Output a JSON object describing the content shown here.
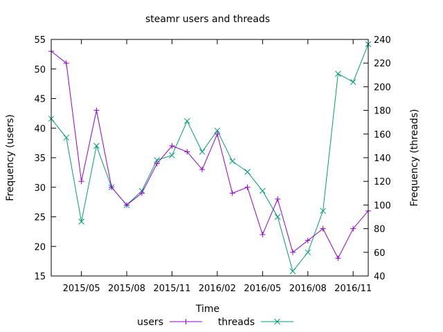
{
  "chart_data": {
    "type": "line",
    "title": "steamr users and threads",
    "xlabel": "Time",
    "ylabel": "Frequency (users)",
    "y2label": "Frequency (threads)",
    "x": [
      "2015-03",
      "2015-04",
      "2015-05",
      "2015-06",
      "2015-07",
      "2015-08",
      "2015-09",
      "2015-10",
      "2015-11",
      "2015-12",
      "2016-01",
      "2016-02",
      "2016-03",
      "2016-04",
      "2016-05",
      "2016-06",
      "2016-07",
      "2016-08",
      "2016-09",
      "2016-10",
      "2016-11",
      "2016-12"
    ],
    "x_ticks": [
      "2015/05",
      "2015/08",
      "2015/11",
      "2016/02",
      "2016/05",
      "2016/08",
      "2016/11"
    ],
    "ylim": [
      15,
      55
    ],
    "y_ticks": [
      15,
      20,
      25,
      30,
      35,
      40,
      45,
      50,
      55
    ],
    "y2lim": [
      40,
      240
    ],
    "y2_ticks": [
      40,
      60,
      80,
      100,
      120,
      140,
      160,
      180,
      200,
      220,
      240
    ],
    "legend_position": "bottom",
    "grid": false,
    "series": [
      {
        "name": "users",
        "axis": "left",
        "marker": "plus",
        "color": "#9400d3",
        "values": [
          53,
          51,
          31,
          43,
          30,
          27,
          29,
          34,
          37,
          36,
          33,
          39,
          29,
          30,
          22,
          28,
          19,
          21,
          23,
          18,
          23,
          26
        ]
      },
      {
        "name": "threads",
        "axis": "right",
        "marker": "cross",
        "color": "#009e73",
        "values": [
          173,
          157,
          86,
          150,
          115,
          100,
          112,
          138,
          142,
          171,
          145,
          163,
          137,
          128,
          112,
          90,
          44,
          60,
          95,
          211,
          204,
          236
        ]
      }
    ]
  }
}
